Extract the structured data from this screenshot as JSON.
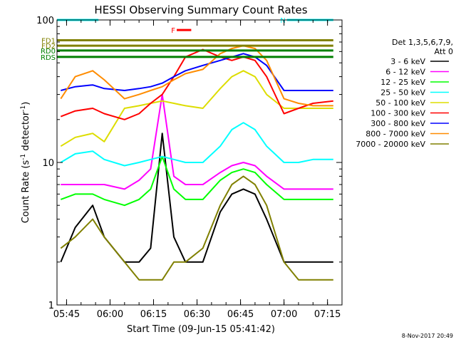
{
  "chart_data": {
    "type": "line",
    "title": "HESSI Observing Summary Count Rates",
    "xlabel": "Start Time (09-Jun-15 05:41:42)",
    "ylabel": "Count Rate (s⁻¹ detector⁻¹)",
    "ylabel_parts": [
      "Count Rate (s",
      "-1",
      " detector",
      "-1",
      ")"
    ],
    "y_scale": "log",
    "ylim": [
      1,
      100
    ],
    "xlim": [
      "05:41:42",
      "07:20:00"
    ],
    "x_ticks": [
      "05:45",
      "06:00",
      "06:15",
      "06:30",
      "06:45",
      "07:00",
      "07:15"
    ],
    "y_ticks": [
      "1",
      "10",
      "100"
    ],
    "grid": false,
    "legend_position": "right",
    "legend_title": "Det 1,3,5,6,7,9,",
    "legend_subtitle": "Att 0",
    "timestamp": "8-Nov-2017 20:49",
    "series": [
      {
        "name": "3 - 6 keV",
        "color": "#000000",
        "x": [
          "05:43",
          "05:48",
          "05:54",
          "05:58",
          "06:05",
          "06:10",
          "06:14",
          "06:18",
          "06:22",
          "06:26",
          "06:32",
          "06:38",
          "06:42",
          "06:46",
          "06:50",
          "06:54",
          "07:00",
          "07:05",
          "07:10",
          "07:17"
        ],
        "y": [
          2.0,
          3.5,
          5.0,
          3.0,
          2.0,
          2.0,
          2.5,
          16,
          3.0,
          2.0,
          2.0,
          4.5,
          6.0,
          6.5,
          6.0,
          4.0,
          2.0,
          2.0,
          2.0,
          2.0
        ]
      },
      {
        "name": "6 - 12 keV",
        "color": "#ff00ff",
        "x": [
          "05:43",
          "05:48",
          "05:54",
          "05:58",
          "06:05",
          "06:10",
          "06:14",
          "06:18",
          "06:22",
          "06:26",
          "06:32",
          "06:38",
          "06:42",
          "06:46",
          "06:50",
          "06:54",
          "07:00",
          "07:05",
          "07:10",
          "07:17"
        ],
        "y": [
          7.0,
          7.0,
          7.0,
          7.0,
          6.5,
          7.5,
          9.0,
          30,
          8.0,
          7.0,
          7.0,
          8.5,
          9.5,
          10,
          9.5,
          8.0,
          6.5,
          6.5,
          6.5,
          6.5
        ]
      },
      {
        "name": "12 - 25 keV",
        "color": "#00ff00",
        "x": [
          "05:43",
          "05:48",
          "05:54",
          "05:58",
          "06:05",
          "06:10",
          "06:14",
          "06:18",
          "06:22",
          "06:26",
          "06:32",
          "06:38",
          "06:42",
          "06:46",
          "06:50",
          "06:54",
          "07:00",
          "07:05",
          "07:10",
          "07:17"
        ],
        "y": [
          5.5,
          6.0,
          6.0,
          5.5,
          5.0,
          5.5,
          6.5,
          11,
          6.5,
          5.5,
          5.5,
          7.5,
          8.5,
          9.0,
          8.5,
          7.0,
          5.5,
          5.5,
          5.5,
          5.5
        ]
      },
      {
        "name": "25 - 50 keV",
        "color": "#00ffff",
        "x": [
          "05:43",
          "05:48",
          "05:54",
          "05:58",
          "06:05",
          "06:10",
          "06:14",
          "06:18",
          "06:22",
          "06:26",
          "06:32",
          "06:38",
          "06:42",
          "06:46",
          "06:50",
          "06:54",
          "07:00",
          "07:05",
          "07:10",
          "07:17"
        ],
        "y": [
          10,
          11.5,
          12,
          10.5,
          9.5,
          10,
          10.5,
          11,
          10.5,
          10,
          10,
          13,
          17,
          19,
          17,
          13,
          10,
          10,
          10.5,
          10.5
        ]
      },
      {
        "name": "50 - 100 keV",
        "color": "#dddd00",
        "x": [
          "05:43",
          "05:48",
          "05:54",
          "05:58",
          "06:05",
          "06:10",
          "06:14",
          "06:18",
          "06:22",
          "06:26",
          "06:32",
          "06:38",
          "06:42",
          "06:46",
          "06:50",
          "06:54",
          "07:00",
          "07:05",
          "07:10",
          "07:17"
        ],
        "y": [
          13,
          15,
          16,
          14,
          24,
          25,
          26,
          27,
          26,
          25,
          24,
          33,
          40,
          44,
          40,
          30,
          24,
          24,
          24,
          24
        ]
      },
      {
        "name": "100 - 300 keV",
        "color": "#ff0000",
        "x": [
          "05:43",
          "05:48",
          "05:54",
          "05:58",
          "06:05",
          "06:10",
          "06:14",
          "06:18",
          "06:22",
          "06:26",
          "06:32",
          "06:38",
          "06:42",
          "06:46",
          "06:50",
          "06:54",
          "07:00",
          "07:05",
          "07:10",
          "07:17"
        ],
        "y": [
          21,
          23,
          24,
          22,
          20,
          22,
          26,
          30,
          40,
          55,
          62,
          55,
          52,
          55,
          52,
          40,
          22,
          24,
          26,
          27
        ]
      },
      {
        "name": "300 - 800 keV",
        "color": "#0000ff",
        "x": [
          "05:43",
          "05:48",
          "05:54",
          "05:58",
          "06:05",
          "06:10",
          "06:14",
          "06:18",
          "06:22",
          "06:26",
          "06:32",
          "06:38",
          "06:42",
          "06:46",
          "06:50",
          "06:54",
          "07:00",
          "07:05",
          "07:10",
          "07:17"
        ],
        "y": [
          32,
          34,
          35,
          33,
          32,
          33,
          34,
          36,
          40,
          44,
          48,
          52,
          55,
          58,
          55,
          48,
          32,
          32,
          32,
          32
        ]
      },
      {
        "name": "800 - 7000 keV",
        "color": "#ff8c00",
        "x": [
          "05:43",
          "05:48",
          "05:54",
          "05:58",
          "06:05",
          "06:10",
          "06:14",
          "06:18",
          "06:22",
          "06:26",
          "06:32",
          "06:38",
          "06:42",
          "06:46",
          "06:50",
          "06:54",
          "07:00",
          "07:05",
          "07:10",
          "07:17"
        ],
        "y": [
          28,
          40,
          44,
          38,
          28,
          30,
          32,
          34,
          38,
          42,
          45,
          58,
          63,
          66,
          63,
          52,
          28,
          26,
          25,
          25
        ]
      },
      {
        "name": "7000 - 20000 keV",
        "color": "#808000",
        "x": [
          "05:43",
          "05:48",
          "05:54",
          "05:58",
          "06:05",
          "06:10",
          "06:14",
          "06:18",
          "06:22",
          "06:26",
          "06:32",
          "06:38",
          "06:42",
          "06:46",
          "06:50",
          "06:54",
          "07:00",
          "07:05",
          "07:10",
          "07:17"
        ],
        "y": [
          2.5,
          3.0,
          4.0,
          3.0,
          2.0,
          1.5,
          1.5,
          1.5,
          2.0,
          2.0,
          2.5,
          5.0,
          7.0,
          8.0,
          7.0,
          5.0,
          2.0,
          1.5,
          1.5,
          1.5
        ]
      }
    ],
    "flag_bars": [
      {
        "label": "",
        "color": "#00ffff",
        "y": 100,
        "from": "05:41:42",
        "to": "05:56:00"
      },
      {
        "label": "N",
        "color": "#00ffff",
        "y": 100,
        "from": "07:01:00",
        "to": "07:17:00"
      },
      {
        "label": "F",
        "color": "#ff0000",
        "y": 85,
        "from": "06:23:00",
        "to": "06:28:00"
      },
      {
        "label": "FD1",
        "color": "#808000",
        "y": 72,
        "from": "05:41:42",
        "to": "07:17:00"
      },
      {
        "label": "FD2",
        "color": "#808000",
        "y": 66,
        "from": "05:41:42",
        "to": "07:17:00"
      },
      {
        "label": "RD0",
        "color": "#008000",
        "y": 61,
        "from": "05:41:42",
        "to": "07:17:00"
      },
      {
        "label": "RDS",
        "color": "#008000",
        "y": 55,
        "from": "05:41:42",
        "to": "07:17:00"
      }
    ]
  }
}
